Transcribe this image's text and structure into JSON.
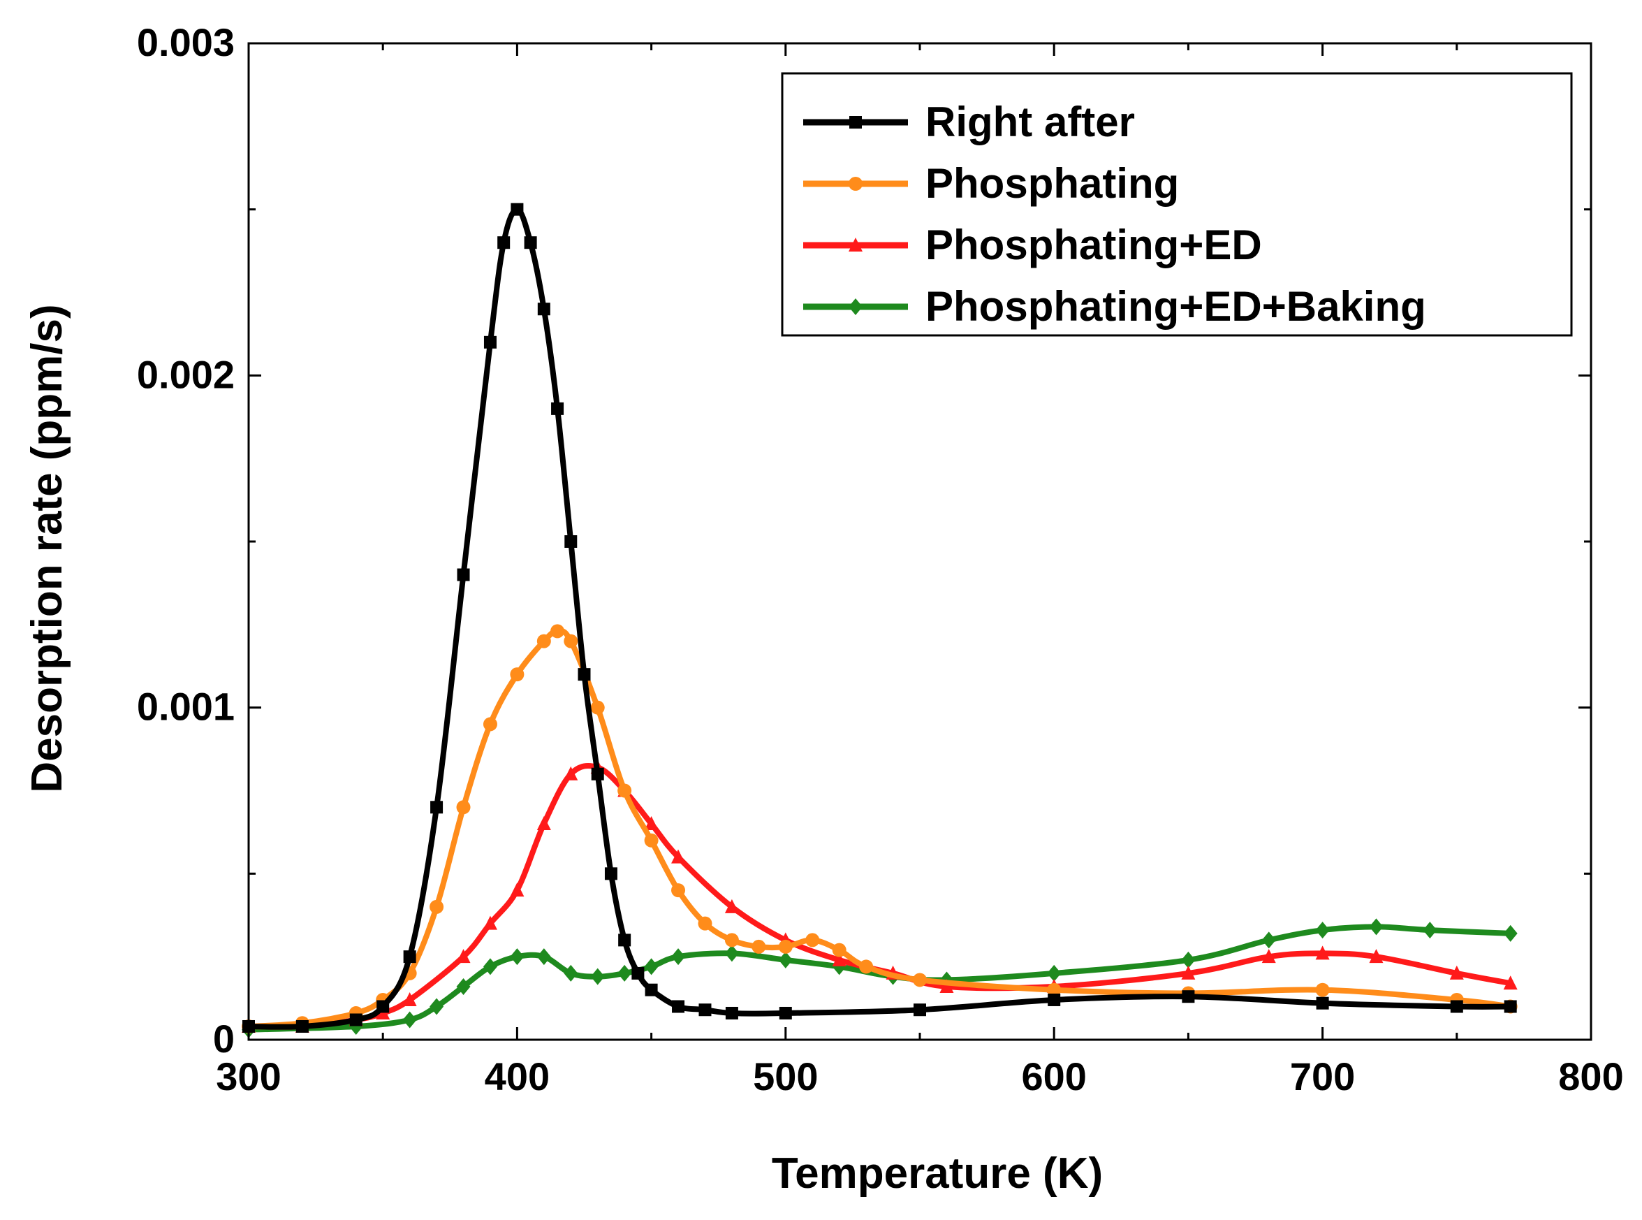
{
  "chart_data": {
    "type": "line",
    "title": "",
    "xlabel": "Temperature (K)",
    "ylabel": "Desorption rate (ppm/s)",
    "xlim": [
      300,
      800
    ],
    "ylim": [
      0,
      0.003
    ],
    "xticks": [
      300,
      400,
      500,
      600,
      700,
      800
    ],
    "xtick_labels": [
      "300",
      "400",
      "500",
      "600",
      "700",
      "800"
    ],
    "yticks": [
      0,
      0.001,
      0.002,
      0.003
    ],
    "ytick_labels": [
      "0",
      "0.001",
      "0.002",
      "0.003"
    ],
    "legend_position": "top-right",
    "series": [
      {
        "name": "Right after",
        "color": "#000000",
        "marker": "square",
        "x": [
          300,
          320,
          340,
          350,
          360,
          370,
          380,
          390,
          395,
          400,
          405,
          410,
          415,
          420,
          425,
          430,
          435,
          440,
          445,
          450,
          460,
          470,
          480,
          500,
          550,
          600,
          650,
          700,
          750,
          770
        ],
        "y": [
          4e-05,
          4e-05,
          6e-05,
          0.0001,
          0.00025,
          0.0007,
          0.0014,
          0.0021,
          0.0024,
          0.0025,
          0.0024,
          0.0022,
          0.0019,
          0.0015,
          0.0011,
          0.0008,
          0.0005,
          0.0003,
          0.0002,
          0.00015,
          0.0001,
          9e-05,
          8e-05,
          8e-05,
          9e-05,
          0.00012,
          0.00013,
          0.00011,
          0.0001,
          0.0001
        ]
      },
      {
        "name": "Phosphating",
        "color": "#ff8c1a",
        "marker": "circle",
        "x": [
          300,
          320,
          340,
          350,
          360,
          370,
          380,
          390,
          400,
          410,
          415,
          420,
          430,
          440,
          450,
          460,
          470,
          480,
          490,
          500,
          510,
          520,
          530,
          550,
          600,
          650,
          700,
          750,
          770
        ],
        "y": [
          4e-05,
          5e-05,
          8e-05,
          0.00012,
          0.0002,
          0.0004,
          0.0007,
          0.00095,
          0.0011,
          0.0012,
          0.00123,
          0.0012,
          0.001,
          0.00075,
          0.0006,
          0.00045,
          0.00035,
          0.0003,
          0.00028,
          0.00028,
          0.0003,
          0.00027,
          0.00022,
          0.00018,
          0.00015,
          0.00014,
          0.00015,
          0.00012,
          0.0001
        ]
      },
      {
        "name": "Phosphating+ED",
        "color": "#ff1a1a",
        "marker": "triangle",
        "x": [
          300,
          320,
          340,
          350,
          360,
          380,
          390,
          400,
          410,
          420,
          430,
          440,
          450,
          460,
          480,
          500,
          520,
          540,
          560,
          600,
          650,
          680,
          700,
          720,
          750,
          770
        ],
        "y": [
          4e-05,
          4e-05,
          6e-05,
          8e-05,
          0.00012,
          0.00025,
          0.00035,
          0.00045,
          0.00065,
          0.0008,
          0.00082,
          0.00075,
          0.00065,
          0.00055,
          0.0004,
          0.0003,
          0.00024,
          0.0002,
          0.00016,
          0.00016,
          0.0002,
          0.00025,
          0.00026,
          0.00025,
          0.0002,
          0.00017
        ]
      },
      {
        "name": "Phosphating+ED+Baking",
        "color": "#1e8a1e",
        "marker": "diamond",
        "x": [
          300,
          340,
          360,
          370,
          380,
          390,
          400,
          410,
          420,
          430,
          440,
          450,
          460,
          480,
          500,
          520,
          540,
          560,
          600,
          650,
          680,
          700,
          720,
          740,
          770
        ],
        "y": [
          3e-05,
          4e-05,
          6e-05,
          0.0001,
          0.00016,
          0.00022,
          0.00025,
          0.00025,
          0.0002,
          0.00019,
          0.0002,
          0.00022,
          0.00025,
          0.00026,
          0.00024,
          0.00022,
          0.00019,
          0.00018,
          0.0002,
          0.00024,
          0.0003,
          0.00033,
          0.00034,
          0.00033,
          0.00032
        ]
      }
    ]
  }
}
